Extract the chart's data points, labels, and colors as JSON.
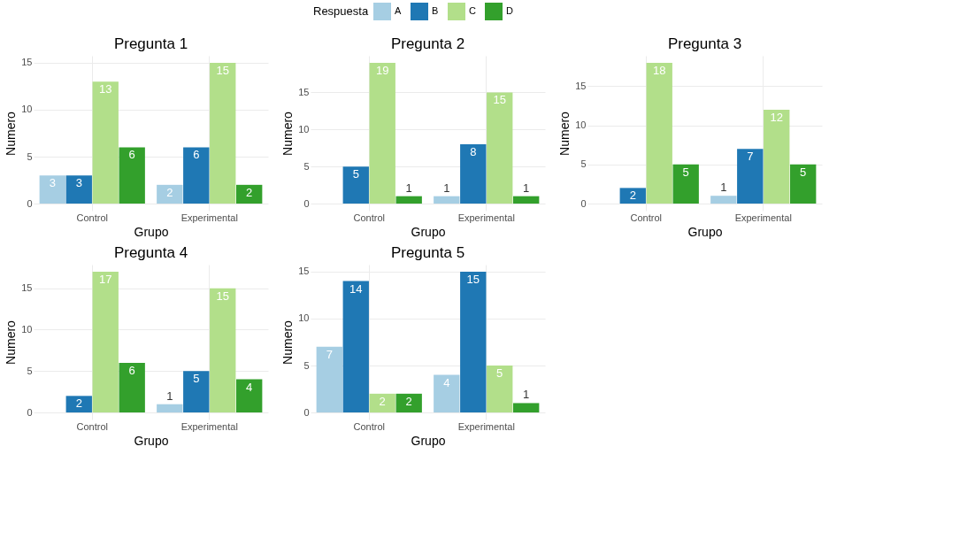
{
  "chart_data": [
    {
      "type": "bar",
      "title": "Pregunta 1",
      "xlabel": "Grupo",
      "ylabel": "Numero",
      "legend_title": "Respuesta",
      "legend": "top",
      "grid": true,
      "categories": [
        "Control",
        "Experimental"
      ],
      "ylim": [
        -0.75,
        15.75
      ],
      "yticks": [
        0,
        5,
        10,
        15
      ],
      "series": [
        {
          "name": "A",
          "color": "#a6cee3",
          "values": [
            3,
            2
          ],
          "value_labels": [
            "3",
            "2"
          ]
        },
        {
          "name": "B",
          "color": "#1f78b4",
          "values": [
            3,
            6
          ],
          "value_labels": [
            "3",
            "6"
          ]
        },
        {
          "name": "C",
          "color": "#b2df8a",
          "values": [
            13,
            15
          ],
          "value_labels": [
            "13",
            "15"
          ]
        },
        {
          "name": "D",
          "color": "#33a02c",
          "values": [
            6,
            2
          ],
          "value_labels": [
            "6",
            "2"
          ]
        }
      ]
    },
    {
      "type": "bar",
      "title": "Pregunta 2",
      "xlabel": "Grupo",
      "ylabel": "Numero",
      "grid": true,
      "categories": [
        "Control",
        "Experimental"
      ],
      "ylim": [
        -0.95,
        19.95
      ],
      "yticks": [
        0,
        5,
        10,
        15
      ],
      "series": [
        {
          "name": "A",
          "color": "#a6cee3",
          "values": [
            0,
            1
          ],
          "value_labels": [
            null,
            "1"
          ]
        },
        {
          "name": "B",
          "color": "#1f78b4",
          "values": [
            5,
            8
          ],
          "value_labels": [
            "5",
            "8"
          ]
        },
        {
          "name": "C",
          "color": "#b2df8a",
          "values": [
            19,
            15
          ],
          "value_labels": [
            "19",
            "15"
          ]
        },
        {
          "name": "D",
          "color": "#33a02c",
          "values": [
            1,
            1
          ],
          "value_labels": [
            "1",
            "1"
          ]
        }
      ]
    },
    {
      "type": "bar",
      "title": "Pregunta 3",
      "xlabel": "Grupo",
      "ylabel": "Numero",
      "grid": true,
      "categories": [
        "Control",
        "Experimental"
      ],
      "ylim": [
        -0.9,
        18.9
      ],
      "yticks": [
        0,
        5,
        10,
        15
      ],
      "series": [
        {
          "name": "A",
          "color": "#a6cee3",
          "values": [
            0,
            1
          ],
          "value_labels": [
            null,
            "1"
          ]
        },
        {
          "name": "B",
          "color": "#1f78b4",
          "values": [
            2,
            7
          ],
          "value_labels": [
            "2",
            "7"
          ]
        },
        {
          "name": "C",
          "color": "#b2df8a",
          "values": [
            18,
            12
          ],
          "value_labels": [
            "18",
            "12"
          ]
        },
        {
          "name": "D",
          "color": "#33a02c",
          "values": [
            5,
            5
          ],
          "value_labels": [
            "5",
            "5"
          ]
        }
      ]
    },
    {
      "type": "bar",
      "title": "Pregunta 4",
      "xlabel": "Grupo",
      "ylabel": "Numero",
      "grid": true,
      "categories": [
        "Control",
        "Experimental"
      ],
      "ylim": [
        -0.85,
        17.85
      ],
      "yticks": [
        0,
        5,
        10,
        15
      ],
      "series": [
        {
          "name": "A",
          "color": "#a6cee3",
          "values": [
            0,
            1
          ],
          "value_labels": [
            null,
            "1"
          ]
        },
        {
          "name": "B",
          "color": "#1f78b4",
          "values": [
            2,
            5
          ],
          "value_labels": [
            "2",
            "5"
          ]
        },
        {
          "name": "C",
          "color": "#b2df8a",
          "values": [
            17,
            15
          ],
          "value_labels": [
            "17",
            "15"
          ]
        },
        {
          "name": "D",
          "color": "#33a02c",
          "values": [
            6,
            4
          ],
          "value_labels": [
            "6",
            "4"
          ]
        }
      ]
    },
    {
      "type": "bar",
      "title": "Pregunta 5",
      "xlabel": "Grupo",
      "ylabel": "Numero",
      "grid": true,
      "categories": [
        "Control",
        "Experimental"
      ],
      "ylim": [
        -0.75,
        15.75
      ],
      "yticks": [
        0,
        5,
        10,
        15
      ],
      "series": [
        {
          "name": "A",
          "color": "#a6cee3",
          "values": [
            7,
            4
          ],
          "value_labels": [
            "7",
            "4"
          ]
        },
        {
          "name": "B",
          "color": "#1f78b4",
          "values": [
            14,
            15
          ],
          "value_labels": [
            "14",
            "15"
          ]
        },
        {
          "name": "C",
          "color": "#b2df8a",
          "values": [
            2,
            5
          ],
          "value_labels": [
            "2",
            "5"
          ]
        },
        {
          "name": "D",
          "color": "#33a02c",
          "values": [
            2,
            1
          ],
          "value_labels": [
            "2",
            "1"
          ]
        }
      ]
    }
  ]
}
